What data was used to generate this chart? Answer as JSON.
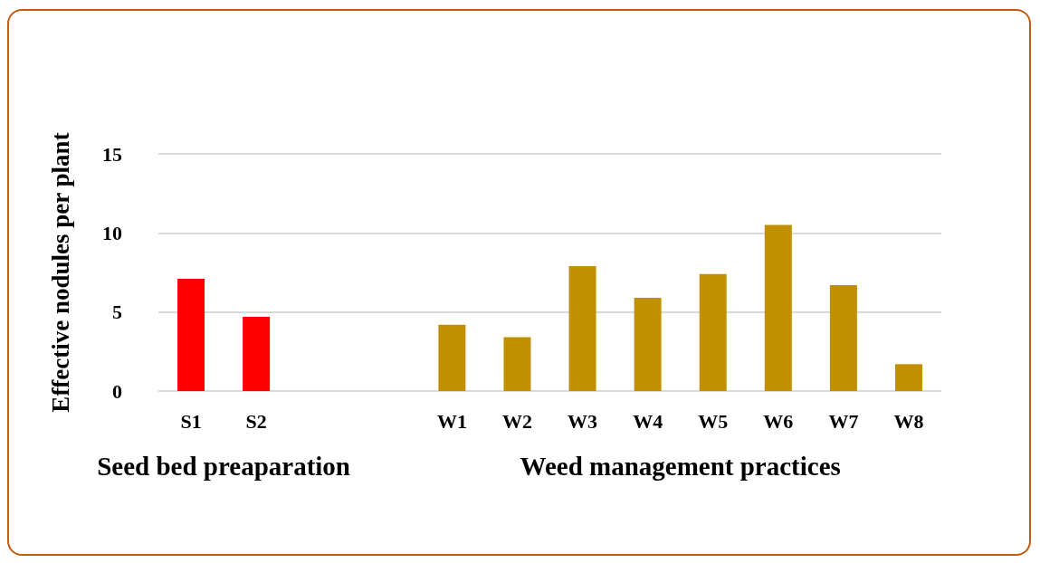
{
  "chart_data": {
    "type": "bar",
    "categories": [
      "S1",
      "S2",
      null,
      null,
      "W1",
      "W2",
      "W3",
      "W4",
      "W5",
      "W6",
      "W7",
      "W8"
    ],
    "values": [
      7.1,
      4.7,
      null,
      null,
      4.2,
      3.4,
      7.9,
      5.9,
      7.4,
      10.5,
      6.7,
      1.7
    ],
    "colors": [
      "#ff0000",
      "#ff0000",
      null,
      null,
      "#c09000",
      "#c09000",
      "#c09000",
      "#c09000",
      "#c09000",
      "#c09000",
      "#c09000",
      "#c09000"
    ],
    "ylabel": "Effective nodules per plant",
    "annotations": [
      "Seed bed preaparation",
      "Weed management practices"
    ],
    "ylim": [
      0,
      15
    ],
    "yticks": [
      0,
      5,
      10,
      15
    ],
    "grid": "y"
  }
}
